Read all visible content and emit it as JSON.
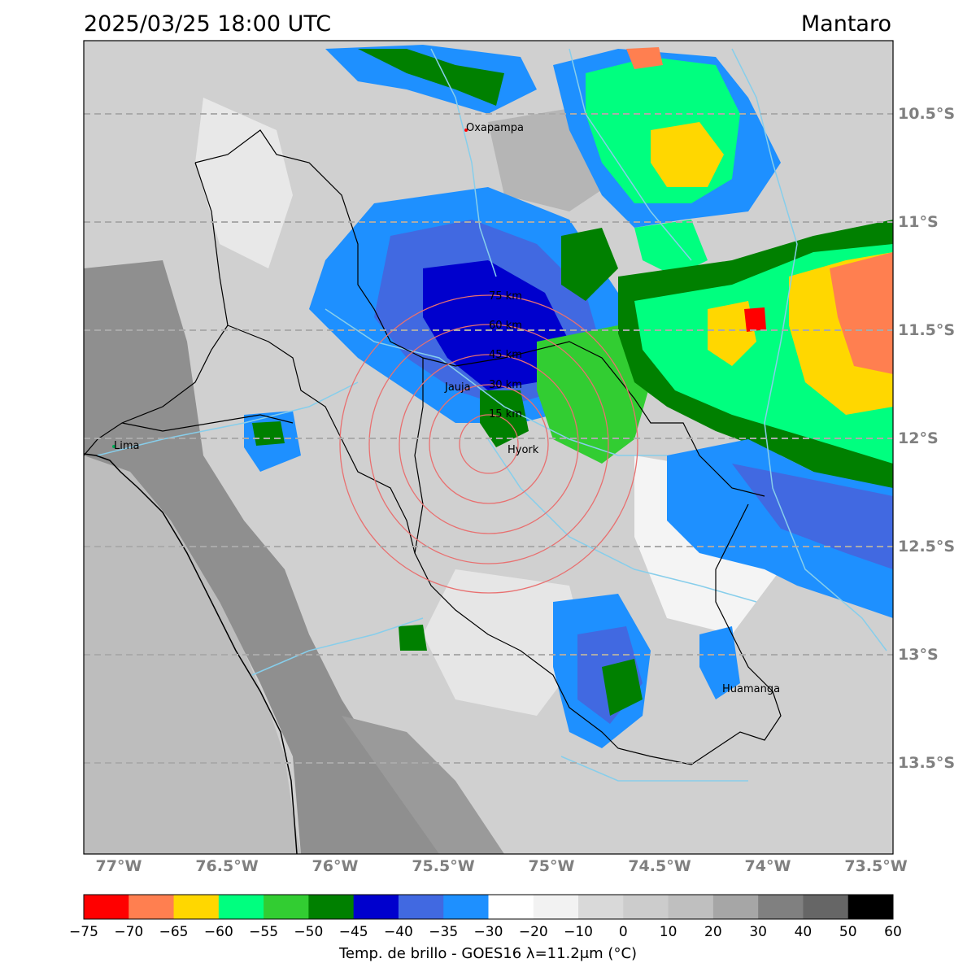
{
  "header": {
    "timestamp": "2025/03/25 18:00 UTC",
    "region": "Mantaro"
  },
  "map": {
    "lat_ticks": [
      "10.5°S",
      "11°S",
      "11.5°S",
      "12°S",
      "12.5°S",
      "13°S",
      "13.5°S"
    ],
    "lon_ticks": [
      "77°W",
      "76.5°W",
      "76°W",
      "75.5°W",
      "75°W",
      "74.5°W",
      "74°W",
      "73.5°W"
    ],
    "cities": [
      {
        "name": "Oxapampa",
        "lon": -75.39,
        "lat": -10.58
      },
      {
        "name": "Jauja",
        "lon": -75.5,
        "lat": -11.78
      },
      {
        "name": "Hyork",
        "lon": -75.32,
        "lat": -12.04
      },
      {
        "name": "Lima",
        "lon": -77.04,
        "lat": -12.05
      },
      {
        "name": "Huamanga",
        "lon": -74.22,
        "lat": -13.16
      }
    ],
    "range_rings": {
      "center": {
        "lon": -75.3,
        "lat": -12.04
      },
      "radii_km": [
        15,
        30,
        45,
        60,
        75
      ],
      "labels": [
        "15 km",
        "30 km",
        "45 km",
        "60 km",
        "75 km"
      ]
    }
  },
  "colorbar": {
    "ticks": [
      "−75",
      "−70",
      "−65",
      "−60",
      "−55",
      "−50",
      "−45",
      "−40",
      "−35",
      "−30",
      "−20",
      "−10",
      "0",
      "10",
      "20",
      "30",
      "40",
      "50",
      "60"
    ],
    "colors": [
      "#ff0000",
      "#ff7f50",
      "#ffd700",
      "#00ff7f",
      "#32cd32",
      "#008000",
      "#0000cd",
      "#4169e1",
      "#1e90ff",
      "#ffffff",
      "#f2f2f2",
      "#d9d9d9",
      "#cccccc",
      "#bfbfbf",
      "#a6a6a6",
      "#808080",
      "#666666",
      "#000000"
    ],
    "label": "Temp. de brillo - GOES16 λ=11.2μm (°C)"
  }
}
